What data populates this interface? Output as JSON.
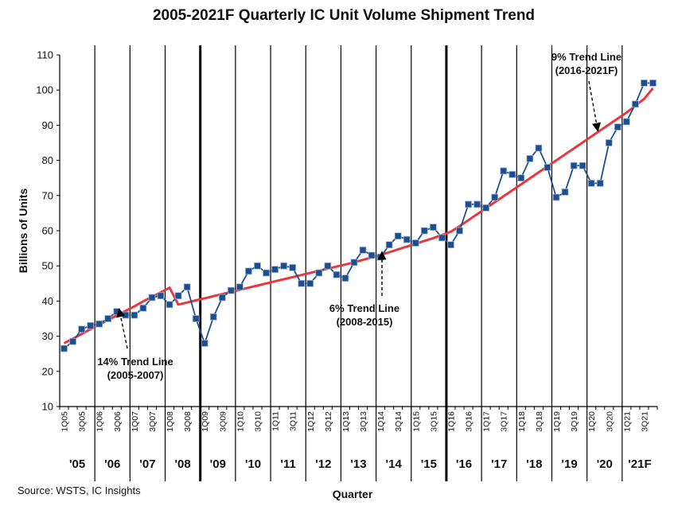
{
  "chart_data": {
    "type": "line",
    "title": "2005-2021F Quarterly IC Unit Volume Shipment Trend",
    "xlabel": "Quarter",
    "ylabel": "Billions of Units",
    "ylim": [
      10,
      110
    ],
    "yticks": [
      10,
      20,
      30,
      40,
      50,
      60,
      70,
      80,
      90,
      100,
      110
    ],
    "source": "Source: WSTS, IC Insights",
    "quarters": [
      "1Q05",
      "2Q05",
      "3Q05",
      "4Q05",
      "1Q06",
      "2Q06",
      "3Q06",
      "4Q06",
      "1Q07",
      "2Q07",
      "3Q07",
      "4Q07",
      "1Q08",
      "2Q08",
      "3Q08",
      "4Q08",
      "1Q09",
      "2Q09",
      "3Q09",
      "4Q09",
      "1Q10",
      "2Q10",
      "3Q10",
      "4Q10",
      "1Q11",
      "2Q11",
      "3Q11",
      "4Q11",
      "1Q12",
      "2Q12",
      "3Q12",
      "4Q12",
      "1Q13",
      "2Q13",
      "3Q13",
      "4Q13",
      "1Q14",
      "2Q14",
      "3Q14",
      "4Q14",
      "1Q15",
      "2Q15",
      "3Q15",
      "4Q15",
      "1Q16",
      "2Q16",
      "3Q16",
      "4Q16",
      "1Q17",
      "2Q17",
      "3Q17",
      "4Q17",
      "1Q18",
      "2Q18",
      "3Q18",
      "4Q18",
      "1Q19",
      "2Q19",
      "3Q19",
      "4Q19",
      "1Q20",
      "2Q20",
      "3Q20",
      "4Q20",
      "1Q21",
      "2Q21",
      "3Q21",
      "4Q21"
    ],
    "x_tick_labels": [
      "1Q05",
      "3Q05",
      "1Q06",
      "3Q06",
      "1Q07",
      "3Q07",
      "1Q08",
      "3Q08",
      "1Q09",
      "3Q09",
      "1Q10",
      "3Q10",
      "1Q11",
      "3Q11",
      "1Q12",
      "3Q12",
      "1Q13",
      "3Q13",
      "1Q14",
      "3Q14",
      "1Q15",
      "3Q15",
      "1Q16",
      "3Q16",
      "1Q17",
      "3Q17",
      "1Q18",
      "3Q18",
      "1Q19",
      "3Q19",
      "1Q20",
      "3Q20",
      "1Q21",
      "3Q21"
    ],
    "years": [
      "'05",
      "'06",
      "'07",
      "'08",
      "'09",
      "'10",
      "'11",
      "'12",
      "'13",
      "'14",
      "'15",
      "'16",
      "'17",
      "'18",
      "'19",
      "'20",
      "'21F"
    ],
    "series": [
      {
        "color": "#1f4e8c",
        "marker": "square",
        "values": [
          26.5,
          28.5,
          32,
          33,
          33.5,
          35,
          37,
          36,
          36,
          38,
          41,
          41.5,
          39,
          41.5,
          44,
          35,
          28,
          35.5,
          41,
          43,
          44,
          48.5,
          50,
          48,
          49,
          50,
          49.5,
          45,
          45,
          48,
          50,
          47.5,
          46.5,
          51,
          54.5,
          53,
          52.5,
          56,
          58.5,
          57.5,
          56.5,
          60,
          61,
          58,
          56,
          60,
          67.5,
          67.5,
          66.5,
          69.5,
          77,
          76,
          75,
          80.5,
          83.5,
          78,
          69.5,
          71,
          78.5,
          78.5,
          73.5,
          73.5,
          85,
          89.5,
          91,
          96,
          102,
          102
        ]
      },
      {
        "color": "#e8383d",
        "values": [
          28,
          29.3,
          30.6,
          32,
          33.3,
          34.6,
          35.9,
          37.2,
          38.5,
          39.9,
          41.2,
          42.5,
          43.8,
          39,
          39.6,
          40.2,
          40.8,
          41.4,
          42,
          42.6,
          43.2,
          43.8,
          44.4,
          45,
          45.6,
          46.2,
          46.8,
          47.4,
          48,
          48.6,
          49.2,
          49.8,
          50.4,
          51,
          51.7,
          52.4,
          53.1,
          53.9,
          54.7,
          55.5,
          56.3,
          57.1,
          57.9,
          58.8,
          59.7,
          61.3,
          63,
          64.7,
          66.4,
          68.1,
          69.8,
          71.5,
          73.2,
          74.9,
          76.6,
          78.3,
          80,
          81.7,
          83.4,
          85.1,
          86.8,
          88.5,
          90.2,
          91.9,
          93.6,
          95.5,
          97.5,
          100.5
        ]
      }
    ],
    "annotations": [
      {
        "line1": "14%  Trend Line",
        "line2": "(2005-2007)"
      },
      {
        "line1": "6% Trend Line",
        "line2": "(2008-2015)"
      },
      {
        "line1": "9% Trend Line",
        "line2": "(2016-2021F)"
      }
    ]
  }
}
